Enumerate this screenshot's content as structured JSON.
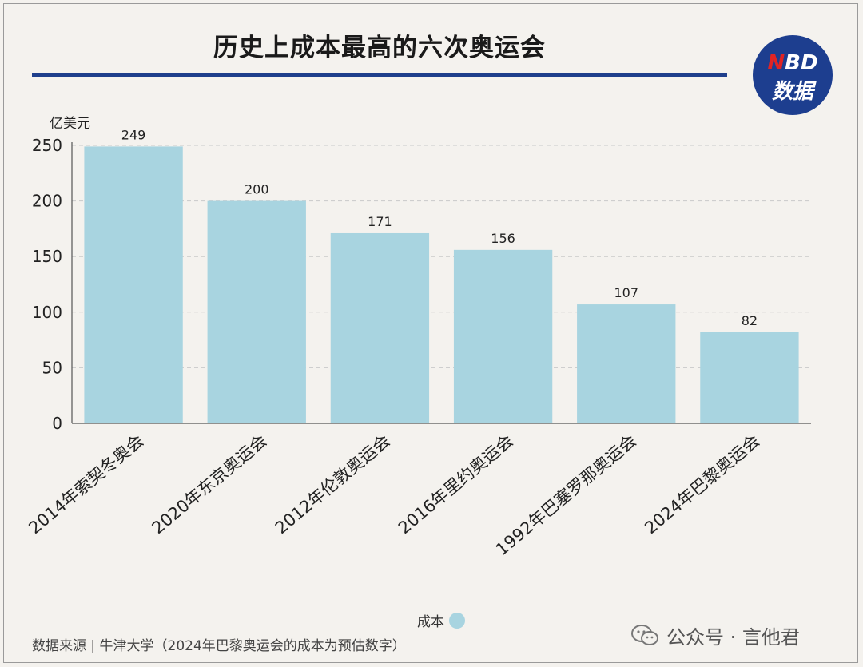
{
  "title": "历史上成本最高的六次奥运会",
  "logo": {
    "line1_accent": "N",
    "line1_rest": "BD",
    "line2": "数据"
  },
  "unit_label": "亿美元",
  "legend_label": "成本",
  "source": "数据来源 | 牛津大学（2024年巴黎奥运会的成本为预估数字）",
  "wechat_label": "公众号 · 言他君",
  "colors": {
    "bar": "#a8d4e0",
    "title_rule": "#1f3f8c",
    "logo_bg": "#1d3e8f",
    "logo_accent": "#e02424"
  },
  "chart_data": {
    "type": "bar",
    "title": "历史上成本最高的六次奥运会",
    "ylabel": "亿美元",
    "xlabel": "",
    "categories": [
      "2014年索契冬奥会",
      "2020年东京奥运会",
      "2012年伦敦奥运会",
      "2016年里约奥运会",
      "1992年巴塞罗那奥运会",
      "2024年巴黎奥运会"
    ],
    "series": [
      {
        "name": "成本",
        "values": [
          249,
          200,
          171,
          156,
          107,
          82
        ]
      }
    ],
    "yticks": [
      0,
      50,
      100,
      150,
      200,
      250
    ],
    "ylim": [
      0,
      250
    ],
    "grid": true,
    "legend": "bottom-center"
  }
}
